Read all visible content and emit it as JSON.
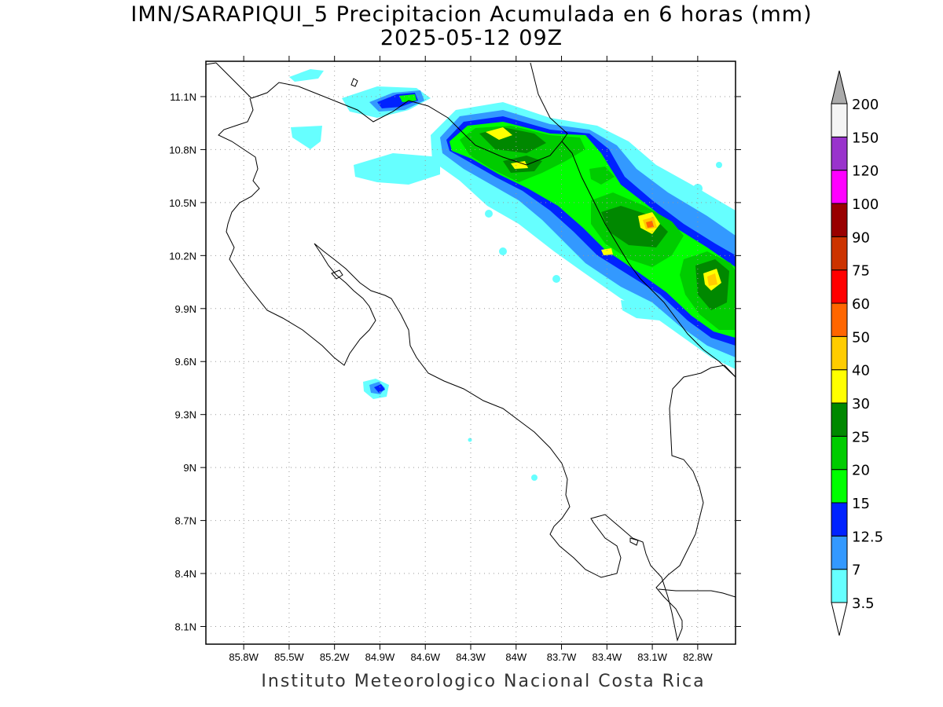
{
  "title_line1": "IMN/SARAPIQUI_5 Precipitacion Acumulada en 6 horas (mm)",
  "title_line2": "2025-05-12 09Z",
  "footer": "Instituto Meteorologico Nacional Costa Rica",
  "map": {
    "lon_range": [
      -86.05,
      -82.55
    ],
    "lat_range": [
      8.0,
      11.3
    ],
    "lon_ticks": [
      "85.8W",
      "85.5W",
      "85.2W",
      "84.9W",
      "84.6W",
      "84.3W",
      "84W",
      "83.7W",
      "83.4W",
      "83.1W",
      "82.8W"
    ],
    "lon_tick_values": [
      -85.8,
      -85.5,
      -85.2,
      -84.9,
      -84.6,
      -84.3,
      -84.0,
      -83.7,
      -83.4,
      -83.1,
      -82.8
    ],
    "lat_ticks": [
      "11.1N",
      "10.8N",
      "10.5N",
      "10.2N",
      "9.9N",
      "9.6N",
      "9.3N",
      "9N",
      "8.7N",
      "8.4N",
      "8.1N"
    ],
    "lat_tick_values": [
      11.1,
      10.8,
      10.5,
      10.2,
      9.9,
      9.6,
      9.3,
      9.0,
      8.7,
      8.4,
      8.1
    ],
    "grid": true
  },
  "colorbar": {
    "labels": [
      "3.5",
      "7",
      "12.5",
      "15",
      "20",
      "25",
      "30",
      "40",
      "50",
      "60",
      "75",
      "90",
      "100",
      "120",
      "150",
      "200"
    ],
    "colors": [
      "#66ffff",
      "#3399ff",
      "#0022ff",
      "#00ff00",
      "#00cc00",
      "#008800",
      "#ffff00",
      "#ffcc00",
      "#ff6600",
      "#ff0000",
      "#cc3300",
      "#990000",
      "#ff00ff",
      "#9933cc",
      "#f4f4f4",
      "#aaaaaa"
    ]
  }
}
